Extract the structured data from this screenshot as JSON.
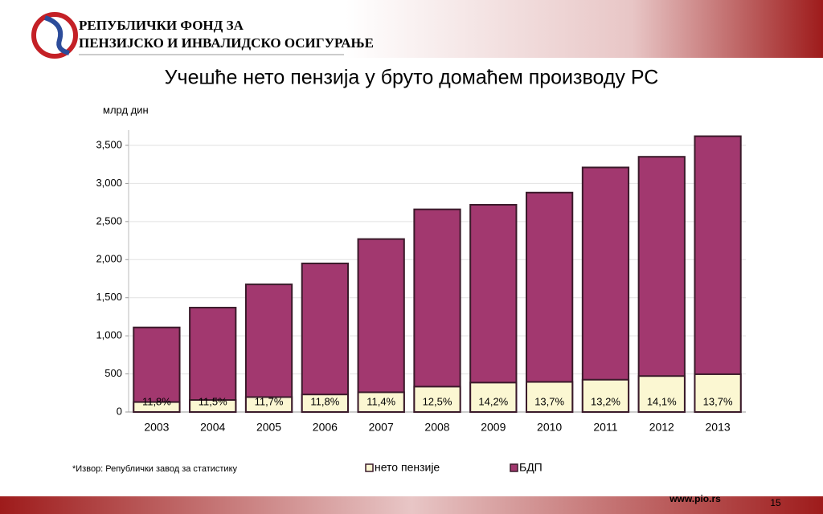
{
  "header": {
    "org_line1": "РЕПУБЛИЧКИ ФОНД ЗА",
    "org_line2": "ПЕНЗИЈСКО И ИНВАЛИДСКО ОСИГУРАЊЕ"
  },
  "footer": {
    "url": "www.pio.rs",
    "page": "15"
  },
  "chart_data": {
    "type": "bar",
    "overlap": true,
    "title": "Учешће нето пензија у бруто домаћем производу РС",
    "y_label": "млрд дин",
    "note": "*Извор: Републички завод за статистику",
    "categories": [
      "2003",
      "2004",
      "2005",
      "2006",
      "2007",
      "2008",
      "2009",
      "2010",
      "2011",
      "2012",
      "2013"
    ],
    "series": [
      {
        "name": "нето пензије",
        "color": "#fbf7d2",
        "values": [
          131,
          158,
          196,
          230,
          259,
          333,
          386,
          395,
          424,
          472,
          496
        ]
      },
      {
        "name": "БДП",
        "color": "#a2386f",
        "values": [
          1110,
          1370,
          1675,
          1950,
          2270,
          2660,
          2720,
          2880,
          3210,
          3350,
          3620
        ]
      }
    ],
    "annotations": [
      "11,8%",
      "11,5%",
      "11,7%",
      "11,8%",
      "11,4%",
      "12,5%",
      "14,2%",
      "13,7%",
      "13,2%",
      "14,1%",
      "13,7%"
    ],
    "ylim": [
      0,
      3700
    ],
    "yticks": [
      0,
      500,
      {
        "value": 1000,
        "label": "1,000"
      },
      {
        "value": 1500,
        "label": "1,500"
      },
      {
        "value": 2000,
        "label": "2,000"
      },
      {
        "value": 2500,
        "label": "2,500"
      },
      {
        "value": 3000,
        "label": "3,000"
      },
      {
        "value": 3500,
        "label": "3,500"
      }
    ],
    "grid": true,
    "legend": "bottom"
  }
}
